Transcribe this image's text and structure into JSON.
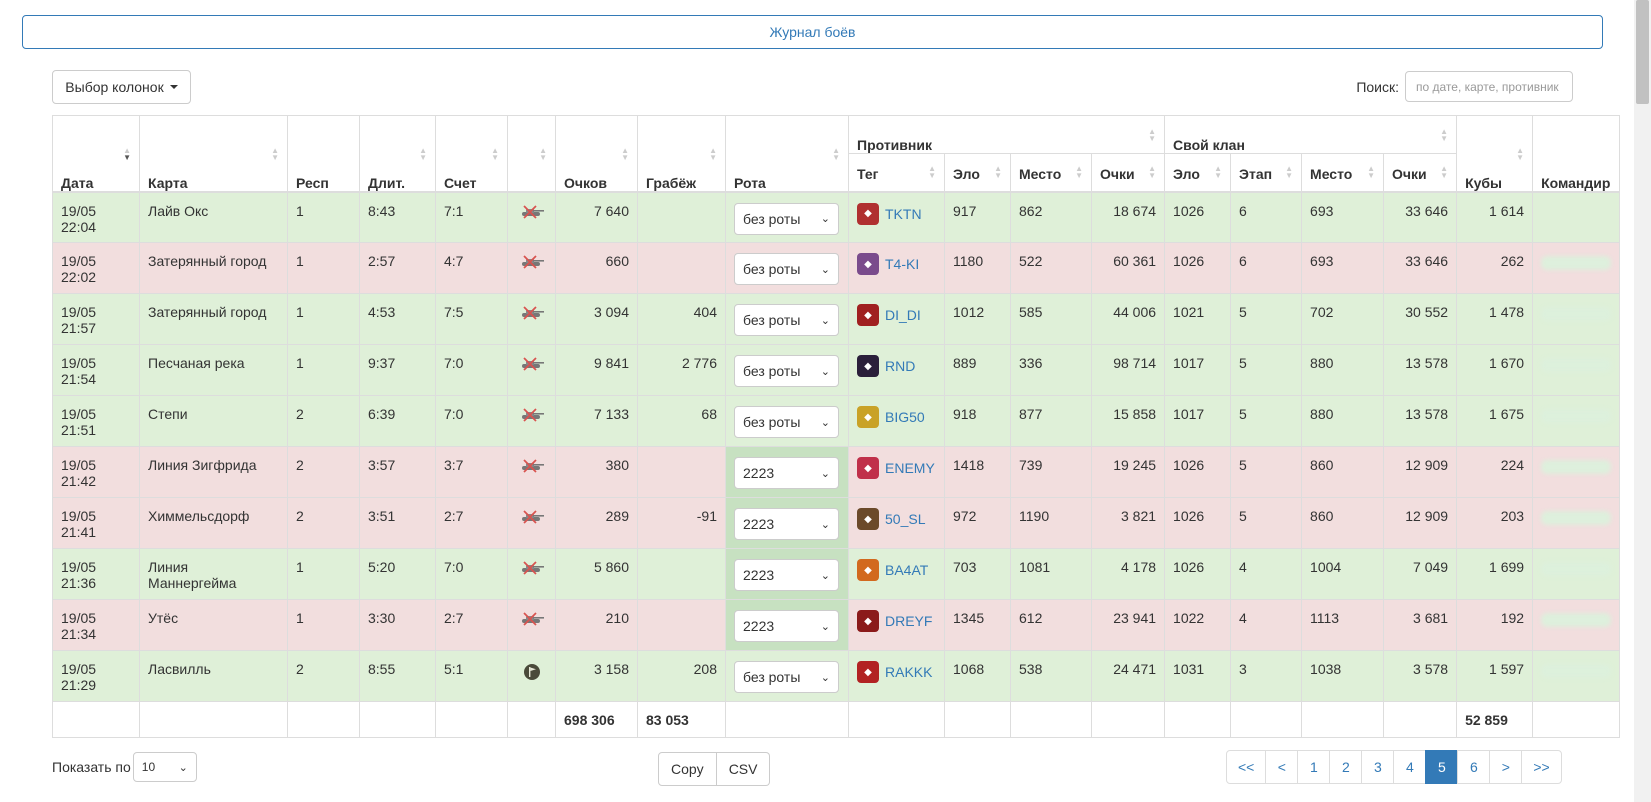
{
  "header": {
    "journal_label": "Журнал боёв"
  },
  "toolbar": {
    "column_select_label": "Выбор колонок",
    "search_label": "Поиск:",
    "search_placeholder": "по дате, карте, противник"
  },
  "table": {
    "group_headers": {
      "opponent": "Противник",
      "own_clan": "Свой клан"
    },
    "columns": {
      "date": "Дата",
      "map": "Карта",
      "resp": "Респ",
      "duration": "Длит.",
      "score": "Счет",
      "icon": "",
      "points": "Очков",
      "loot": "Грабёж",
      "rota": "Рота",
      "opp_tag": "Тег",
      "opp_elo": "Эло",
      "opp_place": "Место",
      "opp_points": "Очки",
      "own_elo": "Эло",
      "own_stage": "Этап",
      "own_place": "Место",
      "own_points": "Очки",
      "cubes": "Кубы",
      "commander": "Командир"
    },
    "rows": [
      {
        "result": "win",
        "date": "19/05 22:04",
        "map": "Лайв Окс",
        "resp": "1",
        "duration": "8:43",
        "score": "7:1",
        "icon": "tank-crossed-icon",
        "points": "7 640",
        "loot": "",
        "rota": "без роты",
        "rota_hl": false,
        "tag": "TKTN",
        "logo_color": "#b03030",
        "opp_elo": "917",
        "opp_place": "862",
        "opp_points": "18 674",
        "own_elo": "1026",
        "own_stage": "6",
        "own_place": "693",
        "own_points": "33 646",
        "cubes": "1 614",
        "commander_blurred": false
      },
      {
        "result": "loss",
        "date": "19/05 22:02",
        "map": "Затерянный город",
        "resp": "1",
        "duration": "2:57",
        "score": "4:7",
        "icon": "tank-crossed-icon",
        "points": "660",
        "loot": "",
        "rota": "без роты",
        "rota_hl": false,
        "tag": "T4-KI",
        "logo_color": "#7a4b8c",
        "opp_elo": "1180",
        "opp_place": "522",
        "opp_points": "60 361",
        "own_elo": "1026",
        "own_stage": "6",
        "own_place": "693",
        "own_points": "33 646",
        "cubes": "262",
        "commander_blurred": true
      },
      {
        "result": "win",
        "date": "19/05 21:57",
        "map": "Затерянный город",
        "resp": "1",
        "duration": "4:53",
        "score": "7:5",
        "icon": "tank-crossed-icon",
        "points": "3 094",
        "loot": "404",
        "rota": "без роты",
        "rota_hl": false,
        "tag": "DI_DI",
        "logo_color": "#a02020",
        "opp_elo": "1012",
        "opp_place": "585",
        "opp_points": "44 006",
        "own_elo": "1021",
        "own_stage": "5",
        "own_place": "702",
        "own_points": "30 552",
        "cubes": "1 478",
        "commander_blurred": true
      },
      {
        "result": "win",
        "date": "19/05 21:54",
        "map": "Песчаная река",
        "resp": "1",
        "duration": "9:37",
        "score": "7:0",
        "icon": "tank-crossed-icon",
        "points": "9 841",
        "loot": "2 776",
        "rota": "без роты",
        "rota_hl": false,
        "tag": "RND",
        "logo_color": "#2a1f3a",
        "opp_elo": "889",
        "opp_place": "336",
        "opp_points": "98 714",
        "own_elo": "1017",
        "own_stage": "5",
        "own_place": "880",
        "own_points": "13 578",
        "cubes": "1 670",
        "commander_blurred": true
      },
      {
        "result": "win",
        "date": "19/05 21:51",
        "map": "Степи",
        "resp": "2",
        "duration": "6:39",
        "score": "7:0",
        "icon": "tank-crossed-icon",
        "points": "7 133",
        "loot": "68",
        "rota": "без роты",
        "rota_hl": false,
        "tag": "BIG50",
        "logo_color": "#c9a227",
        "opp_elo": "918",
        "opp_place": "877",
        "opp_points": "15 858",
        "own_elo": "1017",
        "own_stage": "5",
        "own_place": "880",
        "own_points": "13 578",
        "cubes": "1 675",
        "commander_blurred": true
      },
      {
        "result": "loss",
        "date": "19/05 21:42",
        "map": "Линия Зигфрида",
        "resp": "2",
        "duration": "3:57",
        "score": "3:7",
        "icon": "tank-crossed-icon",
        "points": "380",
        "loot": "",
        "rota": "2223",
        "rota_hl": true,
        "tag": "ENEMY",
        "logo_color": "#c0304a",
        "opp_elo": "1418",
        "opp_place": "739",
        "opp_points": "19 245",
        "own_elo": "1026",
        "own_stage": "5",
        "own_place": "860",
        "own_points": "12 909",
        "cubes": "224",
        "commander_blurred": true
      },
      {
        "result": "loss",
        "date": "19/05 21:41",
        "map": "Химмельсдорф",
        "resp": "2",
        "duration": "3:51",
        "score": "2:7",
        "icon": "tank-crossed-icon",
        "points": "289",
        "loot": "-91",
        "rota": "2223",
        "rota_hl": true,
        "tag": "50_SL",
        "logo_color": "#6b4a2a",
        "opp_elo": "972",
        "opp_place": "1190",
        "opp_points": "3 821",
        "own_elo": "1026",
        "own_stage": "5",
        "own_place": "860",
        "own_points": "12 909",
        "cubes": "203",
        "commander_blurred": true
      },
      {
        "result": "win",
        "date": "19/05 21:36",
        "map": "Линия Маннергейма",
        "resp": "1",
        "duration": "5:20",
        "score": "7:0",
        "icon": "tank-crossed-icon",
        "points": "5 860",
        "loot": "",
        "rota": "2223",
        "rota_hl": true,
        "tag": "BA4AT",
        "logo_color": "#d2691e",
        "opp_elo": "703",
        "opp_place": "1081",
        "opp_points": "4 178",
        "own_elo": "1026",
        "own_stage": "4",
        "own_place": "1004",
        "own_points": "7 049",
        "cubes": "1 699",
        "commander_blurred": true
      },
      {
        "result": "loss",
        "date": "19/05 21:34",
        "map": "Утёс",
        "resp": "1",
        "duration": "3:30",
        "score": "2:7",
        "icon": "tank-crossed-icon",
        "points": "210",
        "loot": "",
        "rota": "2223",
        "rota_hl": true,
        "tag": "DREYF",
        "logo_color": "#8b1a1a",
        "opp_elo": "1345",
        "opp_place": "612",
        "opp_points": "23 941",
        "own_elo": "1022",
        "own_stage": "4",
        "own_place": "1113",
        "own_points": "3 681",
        "cubes": "192",
        "commander_blurred": true
      },
      {
        "result": "win",
        "date": "19/05 21:29",
        "map": "Ласвилль",
        "resp": "2",
        "duration": "8:55",
        "score": "5:1",
        "icon": "flag-circle-icon",
        "points": "3 158",
        "loot": "208",
        "rota": "без роты",
        "rota_hl": false,
        "tag": "RAKKK",
        "logo_color": "#b22222",
        "opp_elo": "1068",
        "opp_place": "538",
        "opp_points": "24 471",
        "own_elo": "1031",
        "own_stage": "3",
        "own_place": "1038",
        "own_points": "3 578",
        "cubes": "1 597",
        "commander_blurred": true
      }
    ],
    "totals": {
      "points": "698 306",
      "loot": "83 053",
      "cubes": "52 859"
    }
  },
  "footer": {
    "show_label": "Показать по",
    "page_length": "10",
    "export_buttons": [
      "Copy",
      "CSV"
    ],
    "pagination": [
      "<<",
      "<",
      "1",
      "2",
      "3",
      "4",
      "5",
      "6",
      ">",
      ">>"
    ],
    "active_page": "5"
  },
  "colors": {
    "win_row": "#dff0d8",
    "loss_row": "#f2dede",
    "rota_highlight": "#c7e1c1",
    "accent": "#337ab7"
  }
}
